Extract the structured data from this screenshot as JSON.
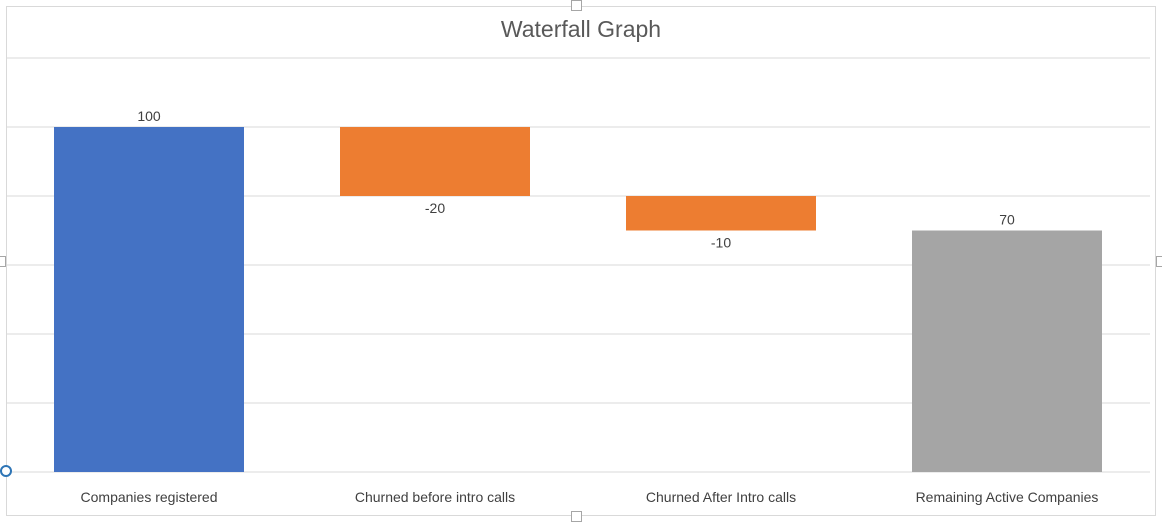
{
  "chart_data": {
    "type": "waterfall",
    "title": "Waterfall Graph",
    "xlabel": "",
    "ylabel": "",
    "ylim": [
      0,
      100
    ],
    "grid": true,
    "legend": "none",
    "categories": [
      "Companies registered",
      "Churned before intro calls",
      "Churned After Intro calls",
      "Remaining Active Companies"
    ],
    "values": [
      100,
      -20,
      -10,
      70
    ],
    "labels": [
      "100",
      "-20",
      "-10",
      "70"
    ],
    "kinds": [
      "total",
      "decrease",
      "decrease",
      "total"
    ],
    "colors": {
      "total_start": "#4472c4",
      "decrease": "#ed7d31",
      "total_end": "#a5a5a5",
      "grid": "#d9d9d9"
    }
  }
}
